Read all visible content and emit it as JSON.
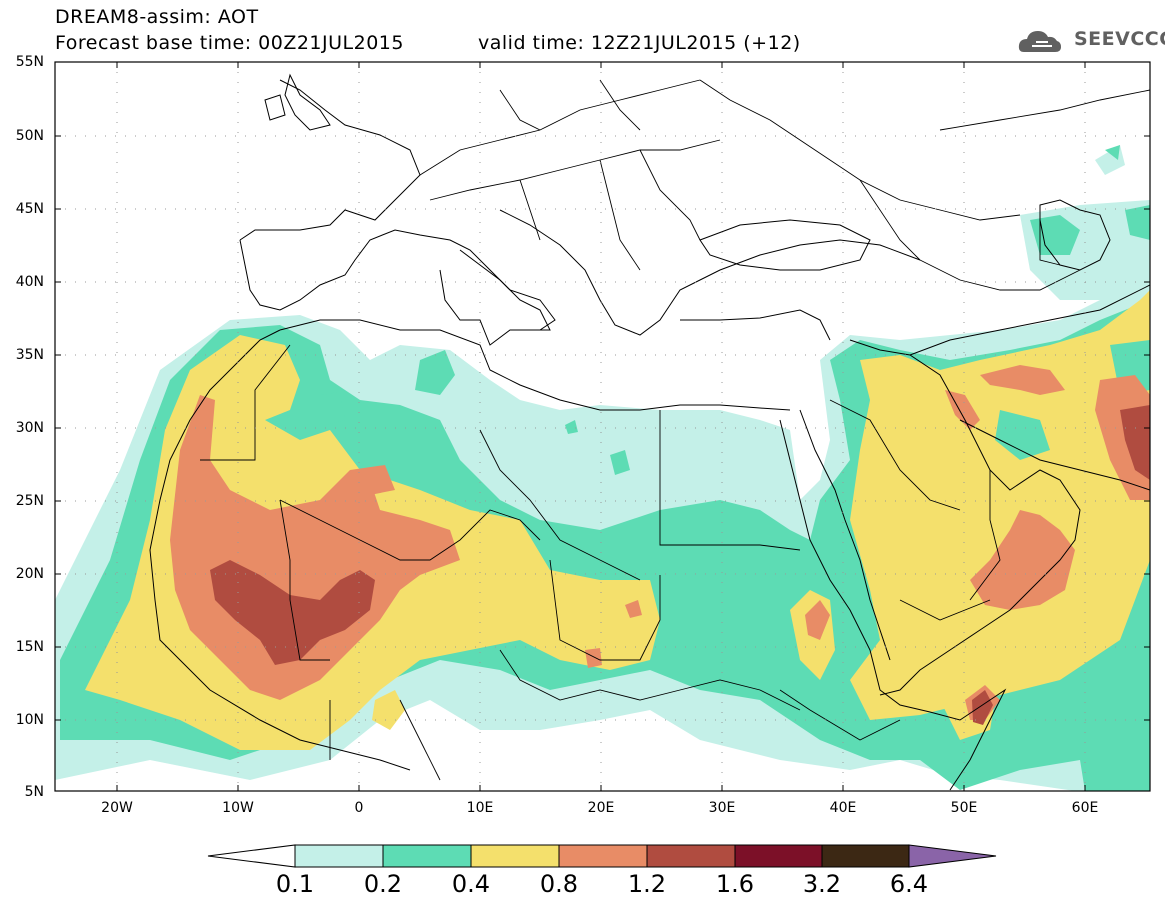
{
  "header": {
    "title_line1": "DREAM8-assim: AOT",
    "title_line2": "Forecast base time: 00Z21JUL2015",
    "valid_time": "valid time: 12Z21JUL2015 (+12)",
    "logo_text": "SEEVCCC"
  },
  "axes": {
    "lat_labels": [
      "55N",
      "50N",
      "45N",
      "40N",
      "35N",
      "30N",
      "25N",
      "20N",
      "15N",
      "10N",
      "5N"
    ],
    "lon_labels": [
      "20W",
      "10W",
      "0",
      "10E",
      "20E",
      "30E",
      "40E",
      "50E",
      "60E"
    ]
  },
  "colorbar": {
    "labels": [
      "0.1",
      "0.2",
      "0.4",
      "0.8",
      "1.2",
      "1.6",
      "3.2",
      "6.4"
    ],
    "colors": [
      "#c4f0e8",
      "#5ddcb4",
      "#f4e06c",
      "#e88c66",
      "#b04c40",
      "#7c1028",
      "#3c2814",
      "#8a64a8"
    ],
    "under_color": "#ffffff"
  },
  "colors": {
    "land_line": "#000000",
    "background": "#ffffff",
    "logo_gray": "#606060"
  }
}
